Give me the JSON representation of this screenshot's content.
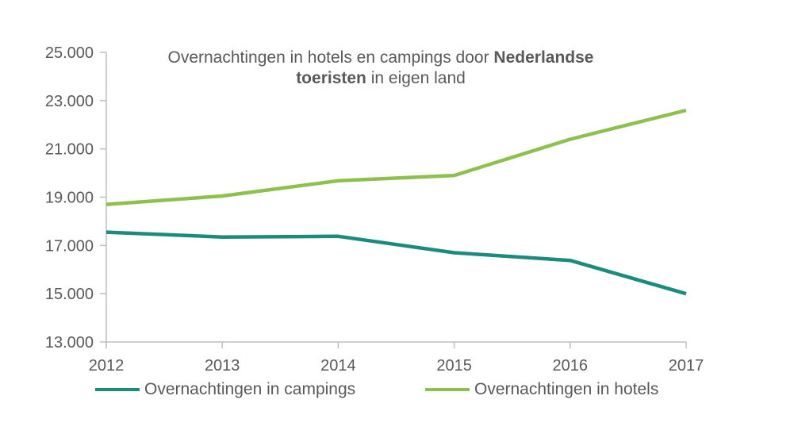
{
  "chart_data": {
    "type": "line",
    "title_parts": [
      {
        "text": "Overnachtingen in hotels en campings door ",
        "bold": false
      },
      {
        "text": "Nederlandse",
        "bold": true
      },
      {
        "text": " ",
        "bold": false
      },
      {
        "text": "toeristen",
        "bold": true
      },
      {
        "text": " in eigen land",
        "bold": false
      }
    ],
    "categories": [
      "2012",
      "2013",
      "2014",
      "2015",
      "2016",
      "2017"
    ],
    "ylim": [
      13000,
      25000
    ],
    "yticks": [
      13000,
      15000,
      17000,
      19000,
      21000,
      23000,
      25000
    ],
    "ytick_labels": [
      "13.000",
      "15.000",
      "17.000",
      "19.000",
      "21.000",
      "23.000",
      "25.000"
    ],
    "grid": false,
    "legend_position": "bottom",
    "series": [
      {
        "name": "Overnachtingen in campings",
        "color": "#1a8b7c",
        "values": [
          17550,
          17350,
          17380,
          16700,
          16380,
          15000
        ]
      },
      {
        "name": "Overnachtingen in hotels",
        "color": "#8dc04e",
        "values": [
          18700,
          19050,
          19680,
          19900,
          21400,
          22600
        ]
      }
    ]
  }
}
